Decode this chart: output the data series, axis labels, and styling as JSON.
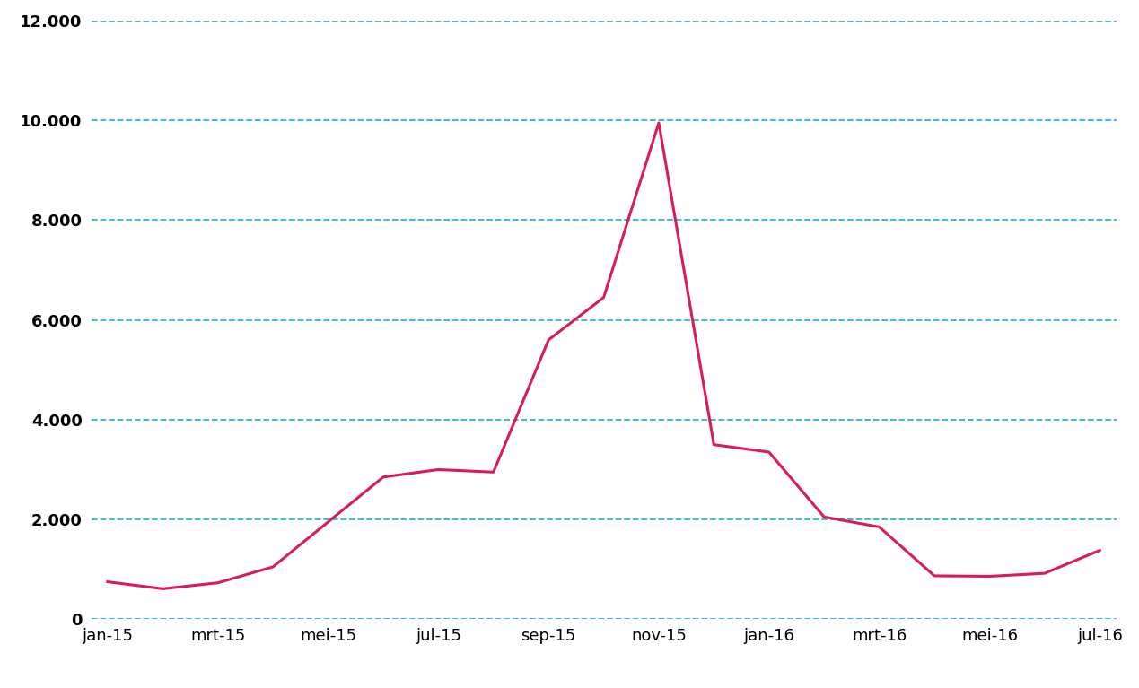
{
  "x_labels": [
    "jan-15",
    "mrt-15",
    "mei-15",
    "jul-15",
    "sep-15",
    "nov-15",
    "jan-16",
    "mrt-16",
    "mei-16",
    "jul-16"
  ],
  "months_data": [
    [
      "jan-15",
      750
    ],
    [
      "feb-15",
      610
    ],
    [
      "mrt-15",
      730
    ],
    [
      "apr-15",
      1050
    ],
    [
      "mei-15",
      1950
    ],
    [
      "jun-15",
      2850
    ],
    [
      "jul-15",
      3000
    ],
    [
      "aug-15",
      2950
    ],
    [
      "sep-15",
      5600
    ],
    [
      "okt-15",
      6450
    ],
    [
      "nov-15",
      9950
    ],
    [
      "dec-15",
      3500
    ],
    [
      "jan-16",
      3350
    ],
    [
      "feb-16",
      2050
    ],
    [
      "mrt-16",
      1850
    ],
    [
      "apr-16",
      870
    ],
    [
      "mei-16",
      860
    ],
    [
      "jun-16",
      920
    ],
    [
      "jul-16",
      1380
    ]
  ],
  "line_color": "#d81b5a",
  "grid_color": "#29b6d8",
  "ylim": [
    0,
    12000
  ],
  "yticks": [
    0,
    2000,
    4000,
    6000,
    8000,
    10000,
    12000
  ],
  "background_color": "#ffffff",
  "line_width": 2.2,
  "tick_fontsize": 13,
  "ytick_fontsize": 13
}
